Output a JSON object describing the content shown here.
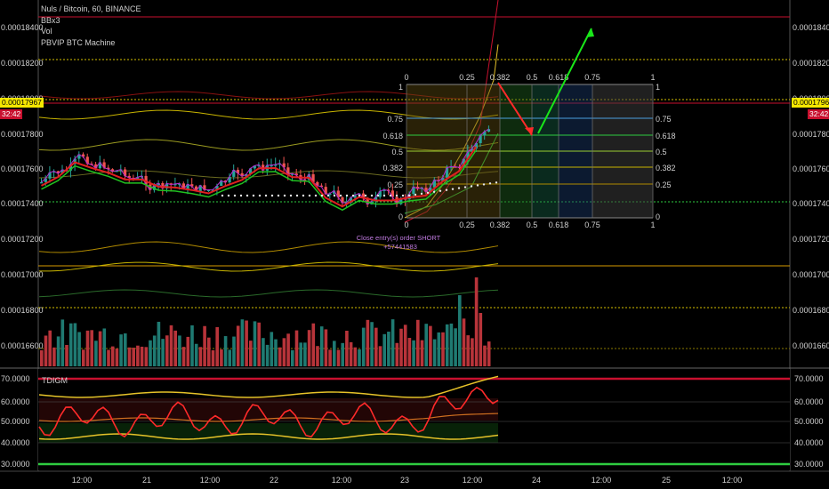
{
  "header": {
    "symbol_line": "Nuls / Bitcoin, 60, BINANCE",
    "indicators": [
      "BBx3",
      "Vol",
      "PBVIP BTC Machine"
    ]
  },
  "price_axis": {
    "labels": [
      "0.00018400",
      "0.00018200",
      "0.00018000",
      "0.00017800",
      "0.00017600",
      "0.00017400",
      "0.00017200",
      "0.00017000",
      "0.00016800",
      "0.00016600"
    ],
    "current_price": "0.00017967",
    "countdown": "32:42",
    "min": 0.000164,
    "max": 0.000185
  },
  "oscillator": {
    "name": "TDIGM",
    "labels": [
      "70.0000",
      "60.0000",
      "50.0000",
      "40.0000",
      "30.0000"
    ],
    "upper_level": 70,
    "lower_level": 30,
    "min": 28,
    "max": 76
  },
  "time_axis": {
    "labels": [
      "12:00",
      "21",
      "12:00",
      "22",
      "12:00",
      "23",
      "12:00",
      "24",
      "12:00",
      "25",
      "12:00"
    ]
  },
  "fib_grid": {
    "levels_left": [
      "0",
      "0.25",
      "0.382",
      "0.5",
      "0.618",
      "0.75",
      "1"
    ],
    "levels_top": [
      "0",
      "0.25",
      "0.382",
      "0.5",
      "0.618",
      "0.75",
      "1"
    ],
    "levels_right": [
      "1",
      "0.75",
      "0.618",
      "0.5",
      "0.382",
      "0.25",
      "0"
    ]
  },
  "annotation": {
    "line1": "Close entry(s) order SHORT",
    "line2": "+57441583"
  },
  "colors": {
    "background": "#000000",
    "bull_candle": "#26a69a",
    "bear_candle": "#ef5350",
    "current_price": "#f5e700",
    "countdown": "#c8102e",
    "tdi_line": "#ff2a2a",
    "tdi_band": "#e6c229",
    "upper_line": "#c8102e",
    "lower_line": "#2ecc40",
    "arrow_down": "#ff2a2a",
    "arrow_up": "#19e619"
  }
}
